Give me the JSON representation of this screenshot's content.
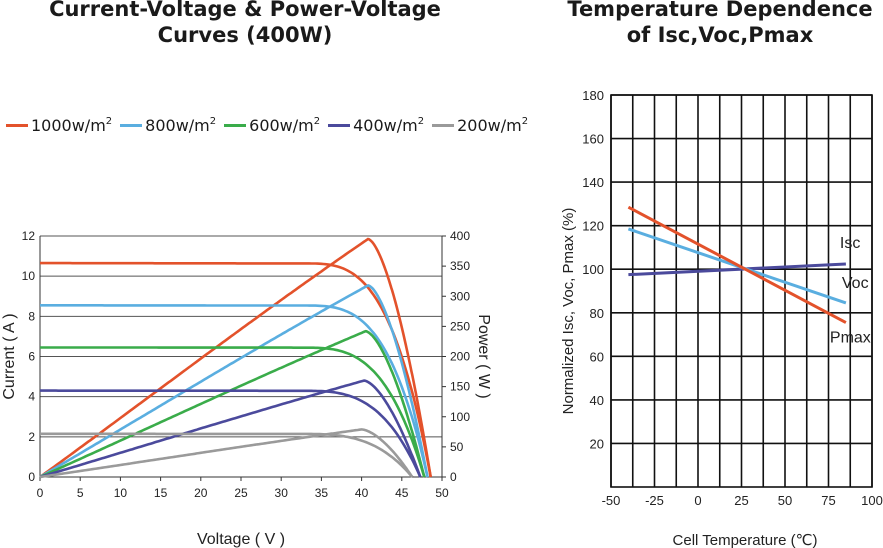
{
  "chart_data": [
    {
      "type": "line",
      "title": [
        "Current-Voltage & Power-Voltage",
        "Curves (400W)"
      ],
      "xlabel": "Voltage ( V )",
      "ylabel": "Current ( A )",
      "y2label": "Power ( W )",
      "xlim": [
        0,
        50
      ],
      "ylim": [
        0,
        12
      ],
      "y2lim": [
        0,
        400
      ],
      "x_ticks": [
        "0",
        "5",
        "10",
        "15",
        "20",
        "25",
        "30",
        "35",
        "40",
        "45",
        "50"
      ],
      "y_ticks": [
        "0",
        "2",
        "4",
        "6",
        "8",
        "10",
        "12"
      ],
      "y2_ticks": [
        "0",
        "50",
        "100",
        "150",
        "200",
        "250",
        "300",
        "350",
        "400"
      ],
      "grid": "horizontal",
      "legend_position": "top",
      "series": [
        {
          "name": "1000w/m",
          "sup": "2",
          "color": "#e3522b",
          "isc": 10.65,
          "voc": 48.6,
          "pmax": 395,
          "vmp": 40.8
        },
        {
          "name": "800w/m",
          "sup": "2",
          "color": "#5aaee0",
          "isc": 8.55,
          "voc": 48.2,
          "pmax": 318,
          "vmp": 40.8
        },
        {
          "name": "600w/m",
          "sup": "2",
          "color": "#3aac4a",
          "isc": 6.45,
          "voc": 47.8,
          "pmax": 242,
          "vmp": 40.5
        },
        {
          "name": "400w/m",
          "sup": "2",
          "color": "#4b4a9c",
          "isc": 4.3,
          "voc": 47.3,
          "pmax": 160,
          "vmp": 40.3
        },
        {
          "name": "200w/m",
          "sup": "2",
          "color": "#9a9a9a",
          "isc": 2.15,
          "voc": 46.3,
          "pmax": 79,
          "vmp": 40.0
        }
      ]
    },
    {
      "type": "line",
      "title": [
        "Temperature Dependence",
        "of Isc,Voc,Pmax"
      ],
      "xlabel": "Cell Temperature (℃)",
      "ylabel": "Normalized Isc, Voc, Pmax (%)",
      "xlim": [
        -50,
        100
      ],
      "ylim": [
        0,
        180
      ],
      "x_ticks": [
        "-50",
        "-25",
        "0",
        "25",
        "50",
        "75",
        "100"
      ],
      "y_ticks": [
        "20",
        "40",
        "60",
        "80",
        "100",
        "120",
        "140",
        "160",
        "180"
      ],
      "grid": "both",
      "series": [
        {
          "name": "Isc",
          "color": "#4b4a9c",
          "x": [
            -40,
            85
          ],
          "y": [
            97.5,
            102.4
          ]
        },
        {
          "name": "Voc",
          "color": "#5aaee0",
          "x": [
            -40,
            85
          ],
          "y": [
            118.5,
            84.5
          ]
        },
        {
          "name": "Pmax",
          "color": "#e3522b",
          "x": [
            -40,
            85
          ],
          "y": [
            128.5,
            75.5
          ]
        }
      ]
    }
  ]
}
